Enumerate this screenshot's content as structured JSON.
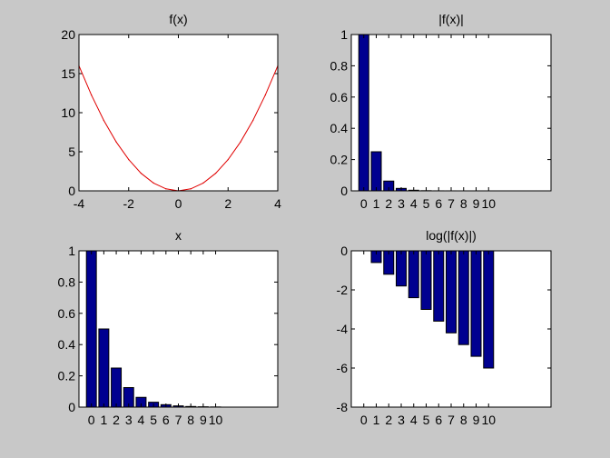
{
  "chart_data": [
    {
      "type": "line",
      "title": "f(x)",
      "xlim": [
        -4,
        4
      ],
      "ylim": [
        0,
        20
      ],
      "xticks": [
        -4,
        -2,
        0,
        2,
        4
      ],
      "yticks": [
        0,
        5,
        10,
        15,
        20
      ],
      "series": [
        {
          "color": "#e00000",
          "x": [
            -4,
            -3.5,
            -3,
            -2.5,
            -2,
            -1.5,
            -1,
            -0.5,
            0,
            0.5,
            1,
            1.5,
            2,
            2.5,
            3,
            3.5,
            4
          ],
          "y": [
            16,
            12.25,
            9,
            6.25,
            4,
            2.25,
            1,
            0.25,
            0,
            0.25,
            1,
            2.25,
            4,
            6.25,
            9,
            12.25,
            16
          ]
        }
      ]
    },
    {
      "type": "bar",
      "title": "|f(x)|",
      "xlim": [
        -1,
        15
      ],
      "ylim": [
        0,
        1
      ],
      "categories": [
        "0",
        "1",
        "2",
        "3",
        "4",
        "5",
        "6",
        "7",
        "8",
        "9",
        "10"
      ],
      "yticks": [
        "0",
        "0.2",
        "0.4",
        "0.6",
        "0.8",
        "1"
      ],
      "values": [
        1,
        0.25,
        0.0625,
        0.0156,
        0.0039,
        0.001,
        0.0002,
        0.0001,
        0,
        0,
        0
      ],
      "color": "#000090"
    },
    {
      "type": "bar",
      "title": "x",
      "xlim": [
        -1,
        15
      ],
      "ylim": [
        0,
        1
      ],
      "categories": [
        "0",
        "1",
        "2",
        "3",
        "4",
        "5",
        "6",
        "7",
        "8",
        "9",
        "10"
      ],
      "yticks": [
        "0",
        "0.2",
        "0.4",
        "0.6",
        "0.8",
        "1"
      ],
      "values": [
        1,
        0.5,
        0.25,
        0.125,
        0.0625,
        0.0313,
        0.0156,
        0.0078,
        0.0039,
        0.002,
        0.001
      ],
      "color": "#000090"
    },
    {
      "type": "bar",
      "title": "log(|f(x)|)",
      "xlim": [
        -1,
        15
      ],
      "ylim": [
        -8,
        0
      ],
      "categories": [
        "0",
        "1",
        "2",
        "3",
        "4",
        "5",
        "6",
        "7",
        "8",
        "9",
        "10"
      ],
      "yticks": [
        "-8",
        "-6",
        "-4",
        "-2",
        "0"
      ],
      "values": [
        0,
        -0.6,
        -1.2,
        -1.8,
        -2.4,
        -3.0,
        -3.6,
        -4.2,
        -4.8,
        -5.4,
        -6.0
      ],
      "color": "#000090"
    }
  ]
}
